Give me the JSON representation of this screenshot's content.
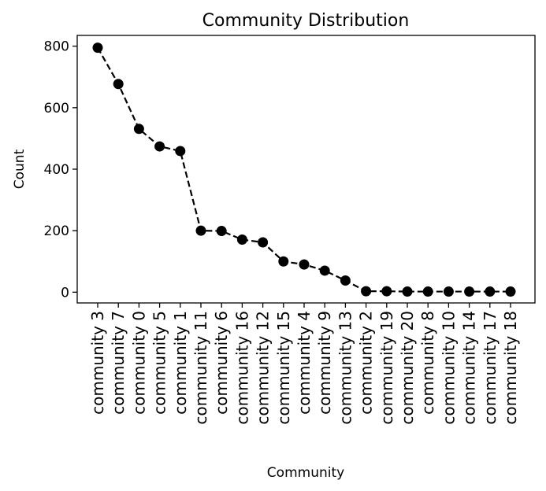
{
  "chart_data": {
    "type": "line",
    "title": "Community Distribution",
    "xlabel": "Community",
    "ylabel": "Count",
    "categories": [
      "community 3",
      "community 7",
      "community 0",
      "community 5",
      "community 1",
      "community 11",
      "community 6",
      "community 16",
      "community 12",
      "community 15",
      "community 4",
      "community 9",
      "community 13",
      "community 2",
      "community 19",
      "community 20",
      "community 8",
      "community 10",
      "community 14",
      "community 17",
      "community 18"
    ],
    "series": [
      {
        "values": [
          795,
          677,
          531,
          474,
          459,
          200,
          199,
          171,
          162,
          100,
          90,
          70,
          38,
          3,
          3,
          2,
          2,
          2,
          2,
          2,
          2
        ]
      }
    ],
    "ylim": [
      -35,
      835
    ],
    "yticks": [
      0,
      200,
      400,
      600,
      800
    ],
    "line_style": "dashed",
    "marker": "circle",
    "color": "#000000",
    "grid": false
  }
}
